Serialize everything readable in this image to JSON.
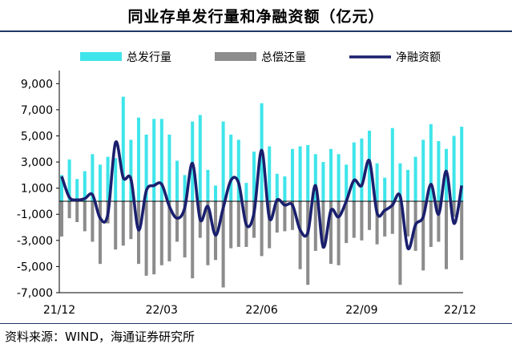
{
  "chart_data": {
    "type": "bar+line",
    "title": "同业存单发行量和净融资额（亿元）",
    "source": "资料来源：WIND，海通证券研究所",
    "ylim": [
      -7000,
      10000
    ],
    "yticks": [
      9000,
      7000,
      5000,
      3000,
      1000,
      -1000,
      -3000,
      -5000,
      -7000
    ],
    "ytick_labels": [
      "9,000",
      "7,000",
      "5,000",
      "3,000",
      "1,000",
      "-1,000",
      "-3,000",
      "-5,000",
      "-7,000"
    ],
    "xtick_labels": [
      {
        "label": "21/12",
        "index": 0
      },
      {
        "label": "22/03",
        "index": 13
      },
      {
        "label": "22/06",
        "index": 26
      },
      {
        "label": "22/09",
        "index": 39
      },
      {
        "label": "22/12",
        "index": 52
      }
    ],
    "num_weeks": 53,
    "colors": {
      "issuance": "#3fe5ea",
      "repayment": "#8c8c8c",
      "net": "#1a1f6e"
    },
    "series": [
      {
        "name": "总发行量",
        "type": "bar",
        "values": [
          2000,
          3200,
          1700,
          2300,
          3600,
          2800,
          3400,
          3300,
          8000,
          4700,
          6400,
          5100,
          6300,
          6300,
          5100,
          3100,
          2000,
          6100,
          6600,
          2400,
          1200,
          6100,
          5100,
          4700,
          1400,
          3800,
          7500,
          4200,
          2100,
          1900,
          4000,
          4200,
          4300,
          3600,
          3000,
          4000,
          3600,
          2800,
          4500,
          4800,
          5400,
          2900,
          1800,
          5600,
          2900,
          2400,
          3400,
          4700,
          5900,
          4600,
          4000,
          5000,
          5700
        ]
      },
      {
        "name": "总偿还量",
        "type": "bar",
        "values": [
          -2700,
          -1300,
          -1600,
          -2300,
          -3100,
          -4800,
          -1700,
          -3700,
          -3400,
          -2900,
          -4800,
          -5700,
          -5600,
          -4900,
          -4600,
          -3100,
          -4300,
          -5900,
          -2800,
          -4900,
          -4500,
          -6600,
          -3600,
          -3500,
          -3500,
          -2800,
          -4200,
          -3600,
          -2400,
          -2300,
          -2200,
          -5200,
          -6400,
          -3800,
          -3600,
          -4800,
          -4900,
          -3200,
          -2800,
          -3000,
          -2200,
          -3300,
          -2700,
          -2500,
          -6400,
          -2700,
          -3800,
          -5300,
          -3500,
          -3100,
          -5200,
          -1200,
          -4500
        ]
      },
      {
        "name": "净融资额",
        "type": "line",
        "values": [
          1900,
          300,
          100,
          200,
          500,
          -1300,
          -1000,
          4500,
          1800,
          1700,
          -2200,
          800,
          1200,
          1300,
          -400,
          -1300,
          -500,
          2900,
          -1400,
          -400,
          -2600,
          -500,
          1600,
          1400,
          -1800,
          -900,
          3900,
          -1300,
          100,
          -300,
          -300,
          -2200,
          -2400,
          1200,
          -3500,
          -700,
          -1200,
          0,
          1600,
          1200,
          3100,
          -900,
          -700,
          -300,
          400,
          -3600,
          -1800,
          -1200,
          1300,
          -1000,
          2300,
          -1700,
          1200
        ]
      }
    ]
  }
}
